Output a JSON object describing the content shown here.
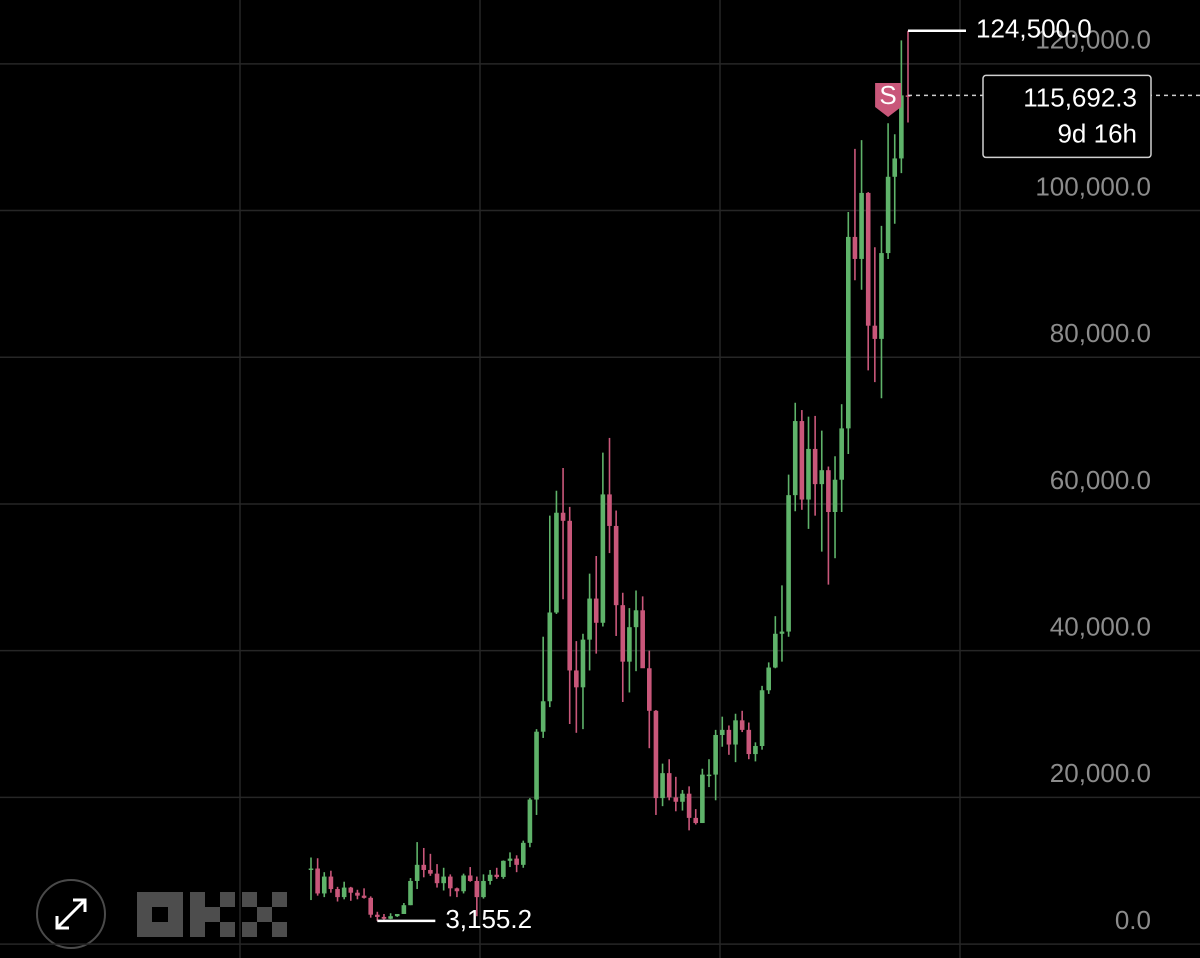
{
  "chart_data": {
    "type": "candlestick",
    "open": [
      10200,
      10300,
      6900,
      9200,
      7500,
      6400,
      7700,
      7000,
      6600,
      6300,
      4000,
      3700,
      3450,
      3800,
      4100,
      5300,
      8600,
      10800,
      10100,
      9600,
      8300,
      9200,
      7600,
      7200,
      9350,
      8600,
      6400,
      8600,
      9450,
      9150,
      11350,
      11650,
      10800,
      13800,
      19700,
      28950,
      33100,
      45200,
      58800,
      57700,
      37300,
      35000,
      41500,
      47100,
      43800,
      61300,
      57000,
      46200,
      38500,
      43200,
      45500,
      37600,
      31800,
      19900,
      23300,
      20000,
      19400,
      20500,
      17200,
      16500,
      23100,
      23100,
      28500,
      29200,
      27200,
      30500,
      29200,
      25900,
      27000,
      34600,
      37700,
      42300,
      42600,
      61200,
      71300,
      60600,
      67500,
      62700,
      64600,
      58900,
      63300,
      70300,
      96400,
      93400,
      102400,
      84300,
      82500,
      94200,
      104600,
      107100,
      115700
    ],
    "high": [
      11800,
      11700,
      9800,
      10000,
      7800,
      8500,
      7800,
      7400,
      7600,
      6500,
      4400,
      4100,
      4200,
      4100,
      5600,
      9000,
      13900,
      13100,
      12300,
      10900,
      10400,
      9500,
      7700,
      9600,
      10500,
      9200,
      9500,
      10100,
      10400,
      11400,
      12500,
      12100,
      14100,
      19900,
      29300,
      41900,
      58400,
      61800,
      64900,
      59600,
      41300,
      42300,
      50500,
      52900,
      67000,
      69000,
      59100,
      47900,
      45800,
      48200,
      47400,
      40000,
      31900,
      24600,
      25200,
      22800,
      21000,
      21500,
      18400,
      23900,
      25200,
      29200,
      31000,
      29800,
      31400,
      31800,
      30200,
      27500,
      35200,
      38400,
      44700,
      48900,
      64000,
      73800,
      72800,
      71900,
      72000,
      70000,
      65100,
      66500,
      73600,
      99800,
      108400,
      109600,
      102500,
      95000,
      97900,
      111900,
      110400,
      123200,
      124500
    ],
    "low": [
      6000,
      6600,
      6400,
      7000,
      5800,
      6100,
      5900,
      6100,
      6200,
      3600,
      3155.2,
      3350,
      3400,
      3700,
      4100,
      5300,
      7500,
      9100,
      9300,
      7700,
      7300,
      6500,
      6400,
      6900,
      8500,
      3800,
      6200,
      8100,
      8900,
      8900,
      10500,
      9800,
      10400,
      13200,
      17600,
      28100,
      32300,
      45000,
      47000,
      30000,
      28800,
      29300,
      37300,
      39600,
      43300,
      53300,
      42000,
      33000,
      34300,
      37200,
      37700,
      26700,
      17600,
      18800,
      19600,
      18100,
      18200,
      15500,
      16300,
      16500,
      21400,
      19600,
      26900,
      25800,
      24800,
      28900,
      25200,
      24900,
      26500,
      34100,
      37600,
      38500,
      41900,
      59000,
      59200,
      56600,
      58400,
      53500,
      49000,
      52600,
      58900,
      66800,
      90500,
      89200,
      78200,
      76600,
      74400,
      93400,
      98200,
      105100,
      112000
    ],
    "close": [
      10300,
      6900,
      9200,
      7500,
      6400,
      7700,
      7000,
      6600,
      6300,
      4000,
      3700,
      3450,
      3800,
      4100,
      5300,
      8600,
      10800,
      10100,
      9600,
      8300,
      9200,
      7600,
      7200,
      9350,
      8600,
      6400,
      8600,
      9450,
      9150,
      11350,
      11650,
      10800,
      13800,
      19700,
      28950,
      33100,
      45200,
      58800,
      57700,
      37300,
      35000,
      41500,
      47100,
      43800,
      61300,
      57000,
      46200,
      38500,
      43200,
      45500,
      37600,
      31800,
      19900,
      23300,
      20000,
      19400,
      20500,
      17200,
      16500,
      23100,
      23100,
      28500,
      29200,
      27200,
      30500,
      29200,
      25900,
      27000,
      34600,
      37700,
      42300,
      42600,
      61200,
      71300,
      60600,
      67500,
      62700,
      64600,
      58900,
      63300,
      70300,
      96400,
      93400,
      102400,
      84300,
      82500,
      94200,
      104600,
      107100,
      115700,
      115692.3
    ],
    "up_color": "#5fb36a",
    "down_color": "#c9577a",
    "ylim": [
      -1900,
      128700
    ],
    "yticks": [
      {
        "value": 0,
        "label": "0.0"
      },
      {
        "value": 20000,
        "label": "20,000.0"
      },
      {
        "value": 40000,
        "label": "40,000.0"
      },
      {
        "value": 60000,
        "label": "60,000.0"
      },
      {
        "value": 80000,
        "label": "80,000.0"
      },
      {
        "value": 100000,
        "label": "100,000.0"
      },
      {
        "value": 120000,
        "label": "120,000.0"
      }
    ],
    "grid": true,
    "max_label": {
      "value": 124500,
      "label": "124,500.0"
    },
    "min_label": {
      "value": 3155.2,
      "label": "3,155.2"
    },
    "last_price": {
      "value": 115692.3,
      "label": "115,692.3"
    },
    "countdown": "9d 16h",
    "signal": "S"
  }
}
